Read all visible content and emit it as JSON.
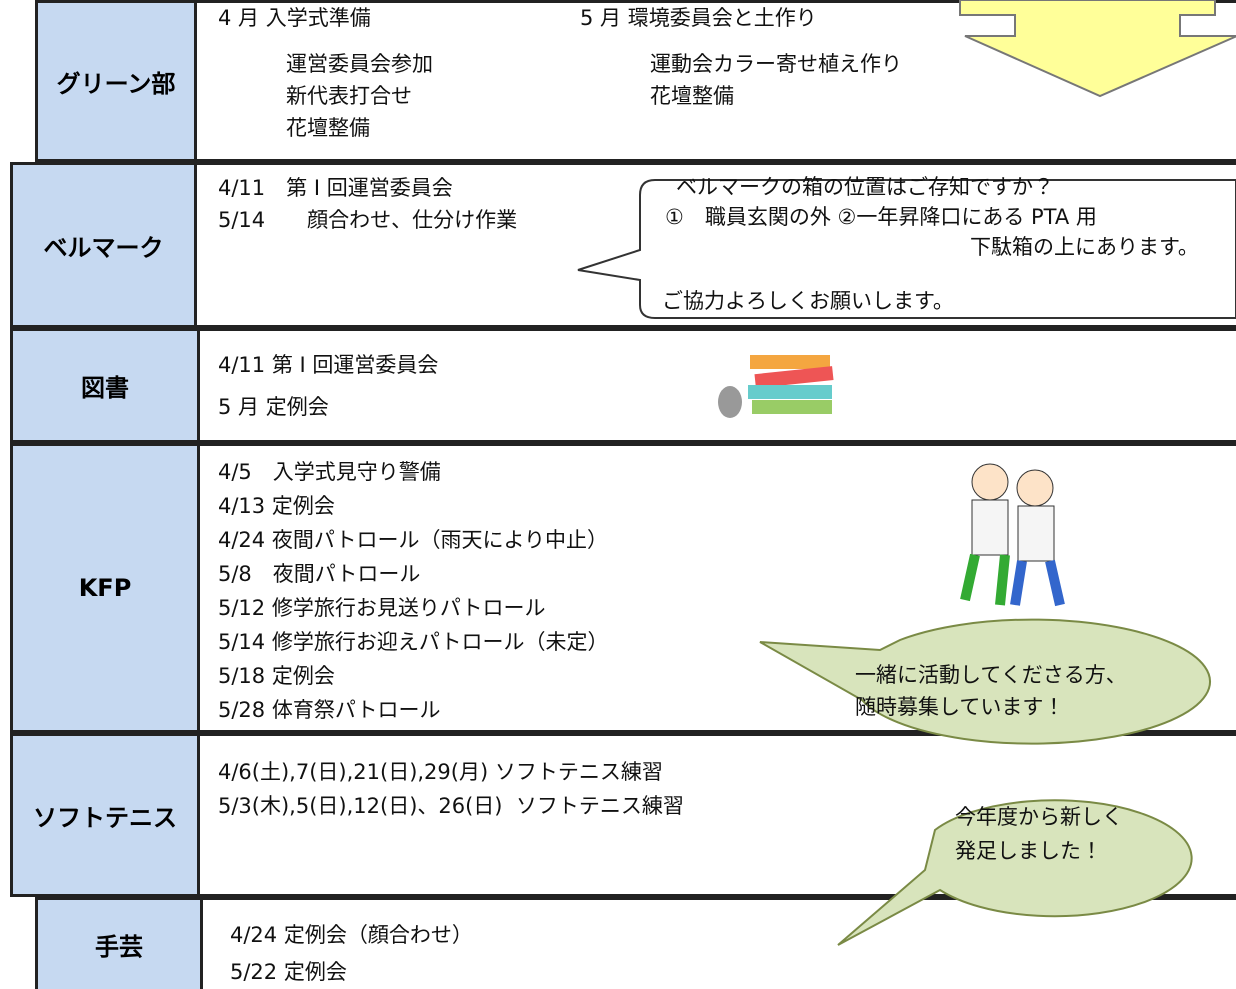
{
  "rows": [
    {
      "label": "グリーン部",
      "columns": [
        [
          "4 月 入学式準備",
          "運営委員会参加",
          "新代表打合せ",
          "花壇整備"
        ],
        [
          "5 月 環境委員会と土作り",
          "運動会カラー寄せ植え作り",
          "花壇整備"
        ]
      ]
    },
    {
      "label": "ベルマーク",
      "columns": [
        [
          "4/11　第 I 回運営委員会",
          "5/14　　顔合わせ、仕分け作業"
        ]
      ]
    },
    {
      "label": "図書",
      "columns": [
        [
          "4/11 第 I 回運営委員会",
          "5 月 定例会"
        ]
      ]
    },
    {
      "label": "KFP",
      "columns": [
        [
          "4/5　入学式見守り警備",
          "4/13 定例会",
          "4/24 夜間パトロール（雨天により中止）",
          "5/8　夜間パトロール",
          "5/12 修学旅行お見送りパトロール",
          "5/14 修学旅行お迎えパトロール（未定）",
          "5/18 定例会",
          "5/28 体育祭パトロール"
        ]
      ]
    },
    {
      "label": "ソフトテニス",
      "columns": [
        [
          "4/6(土),7(日),21(日),29(月) ソフトテニス練習",
          "5/3(木),5(日),12(日)、26(日)  ソフトテニス練習"
        ]
      ]
    },
    {
      "label": "手芸",
      "columns": [
        [
          "4/24 定例会（顔合わせ）",
          "5/22 定例会"
        ]
      ]
    }
  ],
  "callouts": [
    {
      "lines": [
        "ベルマークの箱の位置はご存知ですか？",
        "①　職員玄関の外 ②一年昇降口にある PTA 用",
        "下駄箱の上にあります。",
        "ご協力よろしくお願いします。"
      ]
    },
    {
      "lines": [
        "一緒に活動してくださる方、",
        "随時募集しています！"
      ]
    },
    {
      "lines": [
        "今年度から新しく",
        "発足しました！"
      ]
    }
  ]
}
